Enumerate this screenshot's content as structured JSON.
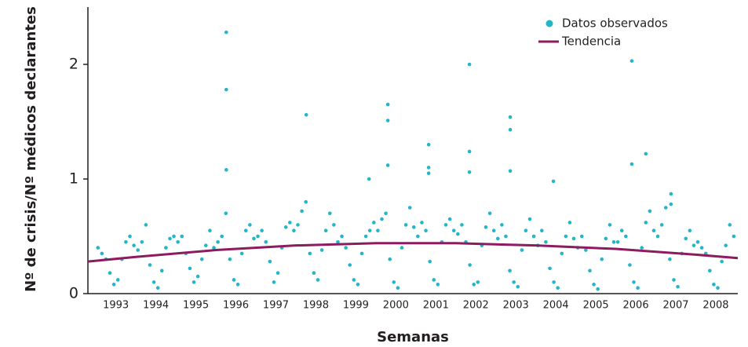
{
  "chart_data": {
    "type": "scatter",
    "ylabel": "Nº de crisis/Nº médicos declarantes",
    "xlabel": "Semanas",
    "xlim": [
      1992.8,
      2009.05
    ],
    "ylim": [
      0,
      2.5
    ],
    "yticks": [
      0,
      1,
      2
    ],
    "xticks": [
      {
        "value": 1993.5,
        "label": "1993"
      },
      {
        "value": 1994.5,
        "label": "1994"
      },
      {
        "value": 1995.5,
        "label": "1995"
      },
      {
        "value": 1996.5,
        "label": "1996"
      },
      {
        "value": 1997.5,
        "label": "1997"
      },
      {
        "value": 1998.5,
        "label": "1998"
      },
      {
        "value": 1999.5,
        "label": "1999"
      },
      {
        "value": 2000.5,
        "label": "2000"
      },
      {
        "value": 2001.5,
        "label": "2001"
      },
      {
        "value": 2002.5,
        "label": "2002"
      },
      {
        "value": 2003.5,
        "label": "2003"
      },
      {
        "value": 2004.5,
        "label": "2004"
      },
      {
        "value": 2005.5,
        "label": "2005"
      },
      {
        "value": 2006.5,
        "label": "2006"
      },
      {
        "value": 2007.5,
        "label": "2007"
      },
      {
        "value": 2008.5,
        "label": "2008"
      }
    ],
    "legend": "top-right",
    "series": [
      {
        "name": "Datos observados",
        "color": "#22b6c8",
        "kind": "points",
        "x": [
          1993.05,
          1993.15,
          1993.25,
          1993.35,
          1993.45,
          1993.55,
          1993.65,
          1993.75,
          1993.85,
          1993.95,
          1994.05,
          1994.15,
          1994.25,
          1994.35,
          1994.45,
          1994.55,
          1994.65,
          1994.75,
          1994.85,
          1994.95,
          1995.05,
          1995.15,
          1995.25,
          1995.35,
          1995.45,
          1995.55,
          1995.65,
          1995.75,
          1995.85,
          1995.95,
          1996.05,
          1996.15,
          1996.25,
          1996.35,
          1996.45,
          1996.55,
          1996.65,
          1996.75,
          1996.85,
          1996.95,
          1997.05,
          1997.15,
          1997.25,
          1997.35,
          1997.45,
          1997.55,
          1997.65,
          1997.75,
          1997.85,
          1997.95,
          1998.05,
          1998.15,
          1998.25,
          1998.35,
          1998.45,
          1998.55,
          1998.65,
          1998.75,
          1998.85,
          1998.95,
          1999.05,
          1999.15,
          1999.25,
          1999.35,
          1999.45,
          1999.55,
          1999.65,
          1999.75,
          1999.85,
          1999.95,
          2000.05,
          2000.15,
          2000.25,
          2000.35,
          2000.45,
          2000.55,
          2000.65,
          2000.75,
          2000.85,
          2000.95,
          2001.05,
          2001.15,
          2001.25,
          2001.35,
          2001.45,
          2001.55,
          2001.65,
          2001.75,
          2001.85,
          2001.95,
          2002.05,
          2002.15,
          2002.25,
          2002.35,
          2002.45,
          2002.55,
          2002.65,
          2002.75,
          2002.85,
          2002.95,
          2003.05,
          2003.15,
          2003.25,
          2003.35,
          2003.45,
          2003.55,
          2003.65,
          2003.75,
          2003.85,
          2003.95,
          2004.05,
          2004.15,
          2004.25,
          2004.35,
          2004.45,
          2004.55,
          2004.65,
          2004.75,
          2004.85,
          2004.95,
          2005.05,
          2005.15,
          2005.25,
          2005.35,
          2005.45,
          2005.55,
          2005.65,
          2005.75,
          2005.85,
          2005.95,
          2006.05,
          2006.15,
          2006.25,
          2006.35,
          2006.45,
          2006.55,
          2006.65,
          2006.75,
          2006.85,
          2006.95,
          2007.05,
          2007.15,
          2007.25,
          2007.35,
          2007.45,
          2007.55,
          2007.65,
          2007.75,
          2007.85,
          2007.95,
          2008.05,
          2008.15,
          2008.25,
          2008.35,
          2008.45,
          2008.55,
          2008.65,
          2008.75,
          2008.85,
          2008.95,
          1996.26,
          1996.26,
          1996.26,
          1998.26,
          1999.83,
          2000.3,
          2000.3,
          2000.3,
          2001.32,
          2001.32,
          2001.32,
          2002.34,
          2002.34,
          2002.34,
          2003.36,
          2003.36,
          2003.36,
          2004.44,
          2006.4,
          2006.4,
          2006.75,
          2007.38,
          2007.38
        ],
        "values": [
          0.4,
          0.35,
          0.3,
          0.18,
          0.08,
          0.12,
          0.3,
          0.45,
          0.5,
          0.42,
          0.38,
          0.45,
          0.6,
          0.25,
          0.1,
          0.05,
          0.2,
          0.4,
          0.48,
          0.5,
          0.45,
          0.5,
          0.35,
          0.22,
          0.1,
          0.15,
          0.3,
          0.42,
          0.55,
          0.4,
          0.45,
          0.5,
          0.7,
          0.3,
          0.12,
          0.08,
          0.35,
          0.55,
          0.6,
          0.48,
          0.5,
          0.55,
          0.45,
          0.28,
          0.1,
          0.18,
          0.4,
          0.58,
          0.62,
          0.55,
          0.6,
          0.72,
          0.8,
          0.35,
          0.18,
          0.12,
          0.38,
          0.55,
          0.7,
          0.6,
          0.45,
          0.5,
          0.4,
          0.25,
          0.12,
          0.08,
          0.35,
          0.5,
          0.55,
          0.62,
          0.55,
          0.65,
          0.7,
          0.3,
          0.1,
          0.05,
          0.4,
          0.6,
          0.75,
          0.58,
          0.5,
          0.62,
          0.55,
          0.28,
          0.12,
          0.08,
          0.45,
          0.6,
          0.65,
          0.55,
          0.52,
          0.6,
          0.45,
          0.25,
          0.08,
          0.1,
          0.42,
          0.58,
          0.7,
          0.55,
          0.48,
          0.6,
          0.5,
          0.2,
          0.1,
          0.06,
          0.38,
          0.55,
          0.65,
          0.5,
          0.42,
          0.55,
          0.45,
          0.22,
          0.1,
          0.05,
          0.35,
          0.5,
          0.62,
          0.48,
          0.4,
          0.5,
          0.38,
          0.2,
          0.08,
          0.04,
          0.3,
          0.48,
          0.6,
          0.45,
          0.45,
          0.55,
          0.5,
          0.25,
          0.1,
          0.05,
          0.4,
          0.62,
          0.72,
          0.55,
          0.5,
          0.6,
          0.75,
          0.3,
          0.12,
          0.06,
          0.35,
          0.48,
          0.55,
          0.42,
          0.45,
          0.4,
          0.35,
          0.2,
          0.08,
          0.05,
          0.28,
          0.42,
          0.6,
          0.5,
          2.28,
          1.78,
          1.08,
          1.56,
          1.0,
          1.65,
          1.51,
          1.12,
          1.3,
          1.1,
          1.05,
          2.0,
          1.24,
          1.06,
          1.54,
          1.43,
          1.07,
          0.98,
          2.03,
          1.13,
          1.22,
          0.87,
          0.78
        ]
      },
      {
        "name": "Tendencia",
        "color": "#8c1b5f",
        "kind": "line",
        "x": [
          1992.8,
          1994,
          1996,
          1998,
          2000,
          2002,
          2004,
          2006,
          2008,
          2009.05
        ],
        "values": [
          0.28,
          0.32,
          0.38,
          0.42,
          0.44,
          0.44,
          0.42,
          0.39,
          0.34,
          0.31
        ]
      }
    ]
  }
}
